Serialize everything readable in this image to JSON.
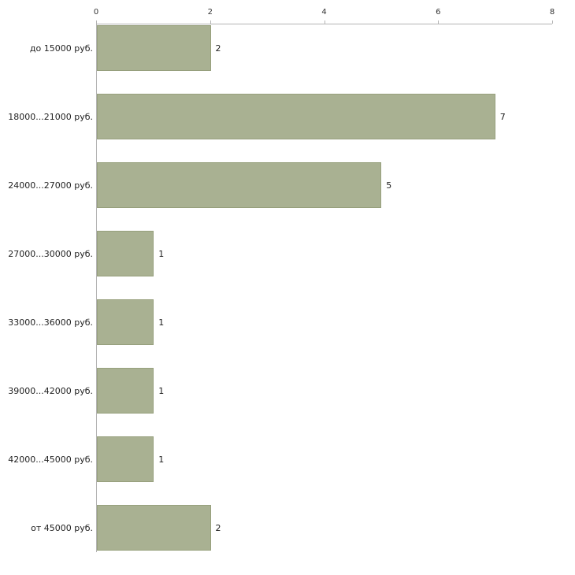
{
  "chart_data": {
    "type": "bar",
    "orientation": "horizontal",
    "title": "",
    "xlabel": "",
    "ylabel": "",
    "categories": [
      "до 15000 руб.",
      "18000...21000 руб.",
      "24000...27000 руб.",
      "27000...30000 руб.",
      "33000...36000 руб.",
      "39000...42000 руб.",
      "42000...45000 руб.",
      "от 45000 руб."
    ],
    "values": [
      2,
      7,
      5,
      1,
      1,
      1,
      1,
      2
    ],
    "x_ticks": [
      0,
      2,
      4,
      6,
      8
    ],
    "xlim": [
      0,
      8
    ],
    "grid": false,
    "legend": false,
    "axis_position": "top",
    "colors": {
      "bar_fill": "#a9b192",
      "bar_border": "#97a07d",
      "axis_line": "#b3b3b3",
      "tick_text": "#333333",
      "label_text": "#222222",
      "background": "#ffffff"
    }
  }
}
